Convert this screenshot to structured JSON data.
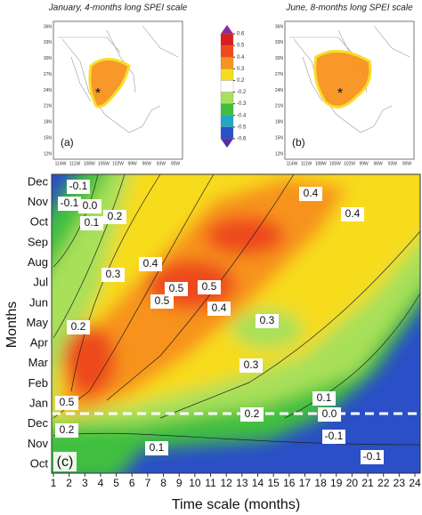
{
  "maps": [
    {
      "title": "January, 4-months long SPEI scale",
      "panel_label": "(a)",
      "marker": "*"
    },
    {
      "title": "June, 8-months long SPEI scale",
      "panel_label": "(b)",
      "marker": "*"
    }
  ],
  "map_lat_labels": [
    "36N",
    "33N",
    "30N",
    "27N",
    "24N",
    "21N",
    "18N",
    "15N",
    "12N"
  ],
  "map_lon_labels": [
    "114W",
    "111W",
    "108W",
    "105W",
    "102W",
    "99W",
    "96W",
    "93W",
    "90W"
  ],
  "colorbar": {
    "ticks": [
      0.6,
      0.5,
      0.4,
      0.3,
      0.2,
      -0.2,
      -0.3,
      -0.4,
      -0.5,
      -0.6
    ],
    "colors": [
      "#8a2ca0",
      "#d81e1e",
      "#ee4a1c",
      "#f7931e",
      "#f7dc1e",
      "#ffffff",
      "#a8e05a",
      "#3fbf3f",
      "#22a6c8",
      "#2a4fc6",
      "#5b2ca0"
    ]
  },
  "chart_data": {
    "type": "heatmap",
    "panel_label": "(c)",
    "xlabel": "Time scale (months)",
    "ylabel": "Months",
    "xlim": [
      1,
      24
    ],
    "xticks": [
      1,
      2,
      3,
      4,
      5,
      6,
      7,
      8,
      9,
      10,
      11,
      12,
      13,
      14,
      15,
      16,
      17,
      18,
      19,
      20,
      21,
      22,
      23,
      24
    ],
    "categories": [
      "Dec",
      "Nov",
      "Oct",
      "Sep",
      "Aug",
      "Jul",
      "Jun",
      "May",
      "Apr",
      "Mar",
      "Feb",
      "Jan",
      "Dec",
      "Nov",
      "Oct"
    ],
    "contour_labels": [
      -0.1,
      -0.1,
      {
        "value": 0,
        "label": "0.0"
      },
      0.1,
      0.2,
      0.4,
      0.4,
      0.3,
      0.4,
      0.5,
      0.5,
      0.5,
      0.4,
      0.3,
      0.2,
      0.3,
      0.5,
      0.2,
      0.2,
      0.1,
      {
        "value": 0,
        "label": "0.0"
      },
      -0.1,
      0.1,
      -0.1
    ]
  }
}
